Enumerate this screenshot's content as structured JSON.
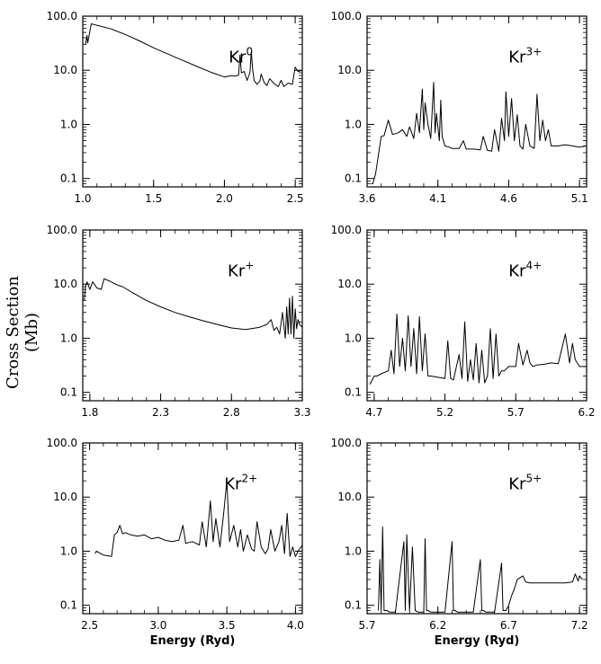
{
  "figure": {
    "ylabel": "Cross Section (Mb)"
  },
  "chart_data": [
    {
      "type": "line",
      "ion": "Kr",
      "charge": "0",
      "xlim": [
        1.0,
        2.55
      ],
      "ylim": [
        0.07,
        100.0
      ],
      "yscale": "log",
      "xticks": [
        1.0,
        1.5,
        2.0,
        2.5
      ],
      "xtick_labels": [
        "1.0",
        "1.5",
        "2.0",
        "2.5"
      ],
      "yticks": [
        0.1,
        1.0,
        10.0,
        100.0
      ],
      "ytick_labels": [
        "0.1",
        "1.0",
        "10.0",
        "100.0"
      ],
      "xlabel": "",
      "x": [
        1.02,
        1.03,
        1.035,
        1.06,
        1.08,
        1.1,
        1.2,
        1.3,
        1.4,
        1.5,
        1.6,
        1.7,
        1.8,
        1.9,
        2.0,
        2.05,
        2.08,
        2.1,
        2.11,
        2.12,
        2.14,
        2.16,
        2.18,
        2.19,
        2.2,
        2.21,
        2.23,
        2.25,
        2.26,
        2.28,
        2.3,
        2.32,
        2.35,
        2.38,
        2.4,
        2.42,
        2.45,
        2.48,
        2.5,
        2.52,
        2.55
      ],
      "y": [
        30,
        44,
        32,
        72,
        70,
        68,
        58,
        46,
        35,
        26,
        20,
        15.5,
        12,
        9.3,
        7.5,
        8,
        7.8,
        8.2,
        19,
        9,
        9.5,
        6.5,
        9,
        22,
        10,
        6.5,
        5.5,
        6.3,
        8.5,
        6,
        5.2,
        7,
        5.7,
        5,
        6.5,
        5,
        5.8,
        5.5,
        11.5,
        9.5,
        10
      ]
    },
    {
      "type": "line",
      "ion": "Kr",
      "charge": "3+",
      "xlim": [
        3.6,
        5.15
      ],
      "ylim": [
        0.07,
        100.0
      ],
      "yscale": "log",
      "xticks": [
        3.6,
        4.1,
        4.6,
        5.1
      ],
      "xtick_labels": [
        "3.6",
        "4.1",
        "4.6",
        "5.1"
      ],
      "yticks": [
        0.1,
        1.0,
        10.0,
        100.0
      ],
      "ytick_labels": [
        "0.1",
        "1.0",
        "10.0",
        "100.0"
      ],
      "xlabel": "",
      "x": [
        3.63,
        3.64,
        3.66,
        3.7,
        3.72,
        3.75,
        3.78,
        3.82,
        3.85,
        3.88,
        3.9,
        3.93,
        3.95,
        3.97,
        3.99,
        4.0,
        4.01,
        4.03,
        4.05,
        4.07,
        4.08,
        4.09,
        4.11,
        4.12,
        4.13,
        4.15,
        4.18,
        4.2,
        4.25,
        4.28,
        4.3,
        4.35,
        4.4,
        4.42,
        4.45,
        4.48,
        4.5,
        4.53,
        4.55,
        4.57,
        4.58,
        4.6,
        4.62,
        4.64,
        4.66,
        4.68,
        4.7,
        4.72,
        4.75,
        4.78,
        4.8,
        4.82,
        4.84,
        4.86,
        4.88,
        4.9,
        4.95,
        5.0,
        5.05,
        5.1,
        5.15
      ],
      "y": [
        0.08,
        0.08,
        0.12,
        0.6,
        0.62,
        1.2,
        0.65,
        0.7,
        0.8,
        0.6,
        0.9,
        0.55,
        1.6,
        0.7,
        4.5,
        0.8,
        2.5,
        1.0,
        0.55,
        6.0,
        0.7,
        1.6,
        0.5,
        2.8,
        0.6,
        0.4,
        0.38,
        0.36,
        0.36,
        0.5,
        0.35,
        0.35,
        0.34,
        0.6,
        0.33,
        0.32,
        0.8,
        0.32,
        1.3,
        0.5,
        4.0,
        0.6,
        3.0,
        0.5,
        1.5,
        0.4,
        0.35,
        1.0,
        0.4,
        0.36,
        3.6,
        0.5,
        1.2,
        0.5,
        0.8,
        0.4,
        0.4,
        0.42,
        0.4,
        0.38,
        0.4
      ]
    },
    {
      "type": "line",
      "ion": "Kr",
      "charge": "+",
      "xlim": [
        1.75,
        3.3
      ],
      "ylim": [
        0.07,
        100.0
      ],
      "yscale": "log",
      "xticks": [
        1.8,
        2.3,
        2.8,
        3.3
      ],
      "xtick_labels": [
        "1.8",
        "2.3",
        "2.8",
        "3.3"
      ],
      "yticks": [
        0.1,
        1.0,
        10.0,
        100.0
      ],
      "ytick_labels": [
        "0.1",
        "1.0",
        "10.0",
        "100.0"
      ],
      "xlabel": "",
      "x": [
        1.76,
        1.77,
        1.78,
        1.8,
        1.82,
        1.85,
        1.88,
        1.9,
        1.92,
        1.95,
        2.0,
        2.03,
        2.1,
        2.2,
        2.3,
        2.4,
        2.5,
        2.6,
        2.7,
        2.8,
        2.9,
        3.0,
        3.05,
        3.08,
        3.1,
        3.12,
        3.14,
        3.16,
        3.18,
        3.19,
        3.2,
        3.21,
        3.22,
        3.23,
        3.24,
        3.25,
        3.26,
        3.27,
        3.28,
        3.3
      ],
      "y": [
        5,
        9,
        11,
        8,
        11,
        8.5,
        8,
        12.5,
        12,
        11,
        9.5,
        9,
        7,
        5,
        3.8,
        3,
        2.5,
        2.1,
        1.8,
        1.55,
        1.45,
        1.6,
        1.8,
        2.2,
        1.4,
        1.6,
        1.2,
        3.0,
        1.0,
        3.8,
        1.2,
        5.5,
        1.2,
        6.0,
        1.0,
        3.5,
        1.5,
        2.2,
        1.8,
        1.6
      ]
    },
    {
      "type": "line",
      "ion": "Kr",
      "charge": "4+",
      "xlim": [
        4.65,
        6.2
      ],
      "ylim": [
        0.07,
        100.0
      ],
      "yscale": "log",
      "xticks": [
        4.7,
        5.2,
        5.7,
        6.2
      ],
      "xtick_labels": [
        "4.7",
        "5.2",
        "5.7",
        "6.2"
      ],
      "yticks": [
        0.1,
        1.0,
        10.0,
        100.0
      ],
      "ytick_labels": [
        "0.1",
        "1.0",
        "10.0",
        "100.0"
      ],
      "xlabel": "",
      "x": [
        4.67,
        4.7,
        4.72,
        4.75,
        4.8,
        4.82,
        4.84,
        4.86,
        4.88,
        4.9,
        4.92,
        4.94,
        4.96,
        4.98,
        5.0,
        5.02,
        5.04,
        5.06,
        5.08,
        5.1,
        5.15,
        5.2,
        5.22,
        5.24,
        5.26,
        5.3,
        5.32,
        5.34,
        5.36,
        5.38,
        5.4,
        5.42,
        5.44,
        5.46,
        5.48,
        5.5,
        5.52,
        5.54,
        5.56,
        5.58,
        5.6,
        5.62,
        5.65,
        5.7,
        5.72,
        5.75,
        5.78,
        5.8,
        5.82,
        5.85,
        5.9,
        5.95,
        6.0,
        6.05,
        6.08,
        6.1,
        6.12,
        6.15,
        6.2
      ],
      "y": [
        0.14,
        0.2,
        0.2,
        0.22,
        0.25,
        0.6,
        0.22,
        2.8,
        0.3,
        1.0,
        0.25,
        2.6,
        0.3,
        1.5,
        0.22,
        2.5,
        0.25,
        1.2,
        0.2,
        0.2,
        0.19,
        0.18,
        0.9,
        0.18,
        0.17,
        0.5,
        0.18,
        2.0,
        0.16,
        0.4,
        0.17,
        0.8,
        0.15,
        0.6,
        0.15,
        0.2,
        1.5,
        0.18,
        1.2,
        0.2,
        0.25,
        0.25,
        0.3,
        0.3,
        0.8,
        0.32,
        0.6,
        0.35,
        0.3,
        0.32,
        0.33,
        0.35,
        0.34,
        1.2,
        0.35,
        0.8,
        0.4,
        0.3,
        0.3
      ]
    },
    {
      "type": "line",
      "ion": "Kr",
      "charge": "2+",
      "xlim": [
        2.45,
        4.05
      ],
      "ylim": [
        0.07,
        100.0
      ],
      "yscale": "log",
      "xticks": [
        2.5,
        3.0,
        3.5,
        4.0
      ],
      "xtick_labels": [
        "2.5",
        "3.0",
        "3.5",
        "4.0"
      ],
      "yticks": [
        0.1,
        1.0,
        10.0,
        100.0
      ],
      "ytick_labels": [
        "0.1",
        "1.0",
        "10.0",
        "100.0"
      ],
      "xlabel": "Energy (Ryd)",
      "x": [
        2.54,
        2.55,
        2.6,
        2.66,
        2.68,
        2.7,
        2.72,
        2.74,
        2.76,
        2.8,
        2.85,
        2.9,
        2.95,
        3.0,
        3.05,
        3.1,
        3.15,
        3.18,
        3.2,
        3.25,
        3.3,
        3.32,
        3.35,
        3.38,
        3.4,
        3.42,
        3.45,
        3.48,
        3.5,
        3.52,
        3.55,
        3.58,
        3.6,
        3.62,
        3.65,
        3.68,
        3.7,
        3.72,
        3.75,
        3.78,
        3.8,
        3.82,
        3.85,
        3.88,
        3.9,
        3.92,
        3.94,
        3.96,
        3.98,
        4.0,
        4.02,
        4.05
      ],
      "y": [
        0.9,
        1.0,
        0.85,
        0.8,
        2.0,
        2.2,
        3.0,
        2.1,
        2.2,
        2.0,
        1.9,
        2.0,
        1.7,
        1.8,
        1.6,
        1.5,
        1.6,
        3.0,
        1.4,
        1.5,
        1.3,
        3.5,
        1.2,
        8.5,
        1.5,
        4.0,
        1.2,
        6.0,
        20.0,
        1.5,
        3.0,
        1.2,
        2.5,
        1.0,
        2.0,
        1.1,
        1.0,
        3.5,
        1.2,
        0.9,
        1.1,
        2.5,
        1.0,
        1.5,
        3.0,
        0.9,
        5.0,
        0.8,
        1.2,
        0.8,
        1.0,
        1.3
      ]
    },
    {
      "type": "line",
      "ion": "Kr",
      "charge": "5+",
      "xlim": [
        5.7,
        7.25
      ],
      "ylim": [
        0.07,
        100.0
      ],
      "yscale": "log",
      "xticks": [
        5.7,
        6.2,
        6.7,
        7.2
      ],
      "xtick_labels": [
        "5.7",
        "6.2",
        "6.7",
        "7.2"
      ],
      "yticks": [
        0.1,
        1.0,
        10.0,
        100.0
      ],
      "ytick_labels": [
        "0.1",
        "1.0",
        "10.0",
        "100.0"
      ],
      "xlabel": "Energy (Ryd)",
      "x": [
        5.78,
        5.79,
        5.8,
        5.81,
        5.82,
        5.84,
        5.86,
        5.88,
        5.9,
        5.96,
        5.97,
        5.98,
        6.0,
        6.02,
        6.04,
        6.06,
        6.1,
        6.11,
        6.12,
        6.13,
        6.15,
        6.2,
        6.25,
        6.3,
        6.31,
        6.32,
        6.34,
        6.4,
        6.45,
        6.5,
        6.51,
        6.52,
        6.54,
        6.6,
        6.65,
        6.66,
        6.67,
        6.68,
        6.7,
        6.72,
        6.74,
        6.76,
        6.8,
        6.82,
        6.85,
        6.9,
        7.0,
        7.1,
        7.15,
        7.17,
        7.19,
        7.2,
        7.22
      ],
      "y": [
        0.08,
        0.7,
        0.08,
        2.8,
        0.08,
        0.08,
        0.075,
        0.075,
        0.075,
        1.5,
        0.08,
        2.0,
        0.08,
        1.2,
        0.08,
        0.075,
        0.075,
        1.7,
        0.08,
        0.08,
        0.075,
        0.075,
        0.075,
        1.5,
        0.08,
        0.08,
        0.075,
        0.075,
        0.075,
        0.7,
        0.08,
        0.08,
        0.075,
        0.075,
        0.6,
        0.08,
        0.08,
        0.08,
        0.1,
        0.15,
        0.2,
        0.3,
        0.35,
        0.27,
        0.26,
        0.26,
        0.26,
        0.26,
        0.27,
        0.38,
        0.28,
        0.35,
        0.3
      ]
    }
  ]
}
